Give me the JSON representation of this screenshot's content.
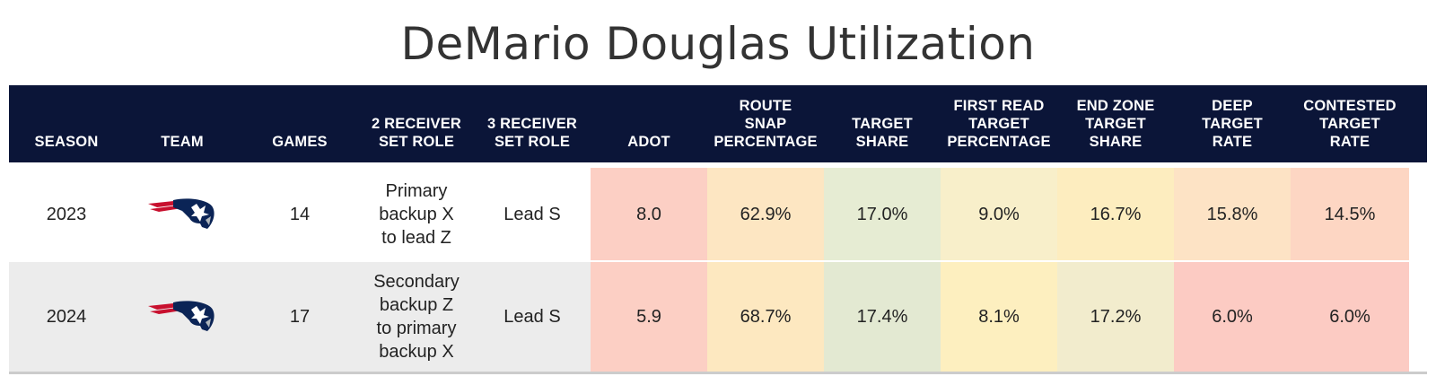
{
  "title": "DeMario Douglas Utilization",
  "columns": [
    {
      "key": "season",
      "label": "SEASON",
      "width": 128
    },
    {
      "key": "team",
      "label": "TEAM",
      "width": 130
    },
    {
      "key": "games",
      "label": "GAMES",
      "width": 132
    },
    {
      "key": "two_wr_role",
      "label": "2 RECEIVER\nSET ROLE",
      "width": 128
    },
    {
      "key": "three_wr_role",
      "label": "3 RECEIVER\nSET ROLE",
      "width": 130
    },
    {
      "key": "adot",
      "label": "ADOT",
      "width": 130
    },
    {
      "key": "route_snap",
      "label": "ROUTE\nSNAP\nPERCENTAGE",
      "width": 130
    },
    {
      "key": "target_share",
      "label": "TARGET\nSHARE",
      "width": 130
    },
    {
      "key": "first_read",
      "label": "FIRST READ\nTARGET\nPERCENTAGE",
      "width": 130
    },
    {
      "key": "end_zone",
      "label": "END ZONE\nTARGET\nSHARE",
      "width": 130
    },
    {
      "key": "deep_target",
      "label": "DEEP\nTARGET\nRATE",
      "width": 130
    },
    {
      "key": "contested",
      "label": "CONTESTED\nTARGET\nRATE",
      "width": 132
    }
  ],
  "rows": [
    {
      "season": "2023",
      "team": "patriots-logo",
      "games": "14",
      "two_wr_role": "Primary\nbackup X\nto lead Z",
      "three_wr_role": "Lead S",
      "adot": "8.0",
      "route_snap": "62.9%",
      "target_share": "17.0%",
      "first_read": "9.0%",
      "end_zone": "16.7%",
      "deep_target": "15.8%",
      "contested": "14.5%"
    },
    {
      "season": "2024",
      "team": "patriots-logo",
      "games": "17",
      "two_wr_role": "Secondary\nbackup Z\nto primary\nbackup X",
      "three_wr_role": "Lead S",
      "adot": "5.9",
      "route_snap": "68.7%",
      "target_share": "17.4%",
      "first_read": "8.1%",
      "end_zone": "17.2%",
      "deep_target": "6.0%",
      "contested": "6.0%"
    }
  ],
  "cell_colors": [
    {
      "adot": "#fccfc4",
      "route_snap": "#fde6c2",
      "target_share": "#e6ecd3",
      "first_read": "#f8efca",
      "end_zone": "#fdedbf",
      "deep_target": "#fde3c5",
      "contested": "#fdd6c3"
    },
    {
      "adot": "#fccfc4",
      "route_snap": "#fde8c0",
      "target_share": "#e3e9d2",
      "first_read": "#fdefbf",
      "end_zone": "#f2eccd",
      "deep_target": "#fccbc3",
      "contested": "#fccbc3"
    }
  ],
  "colors": {
    "header_bg": "#0b1538",
    "header_text": "#ffffff",
    "logo_navy": "#0b2456",
    "logo_red": "#c8102e",
    "logo_silver": "#b0b7bc"
  },
  "chart_data": {
    "type": "table",
    "title": "DeMario Douglas Utilization",
    "headers": [
      "SEASON",
      "TEAM",
      "GAMES",
      "2 RECEIVER SET ROLE",
      "3 RECEIVER SET ROLE",
      "ADOT",
      "ROUTE SNAP PERCENTAGE",
      "TARGET SHARE",
      "FIRST READ TARGET PERCENTAGE",
      "END ZONE TARGET SHARE",
      "DEEP TARGET RATE",
      "CONTESTED TARGET RATE"
    ],
    "rows": [
      [
        "2023",
        "patriots-logo",
        "14",
        "Primary backup X to lead Z",
        "Lead S",
        "8.0",
        "62.9%",
        "17.0%",
        "9.0%",
        "16.7%",
        "15.8%",
        "14.5%"
      ],
      [
        "2024",
        "patriots-logo",
        "17",
        "Secondary backup Z to primary backup X",
        "Lead S",
        "5.9",
        "68.7%",
        "17.4%",
        "8.1%",
        "17.2%",
        "6.0%",
        "6.0%"
      ]
    ]
  }
}
